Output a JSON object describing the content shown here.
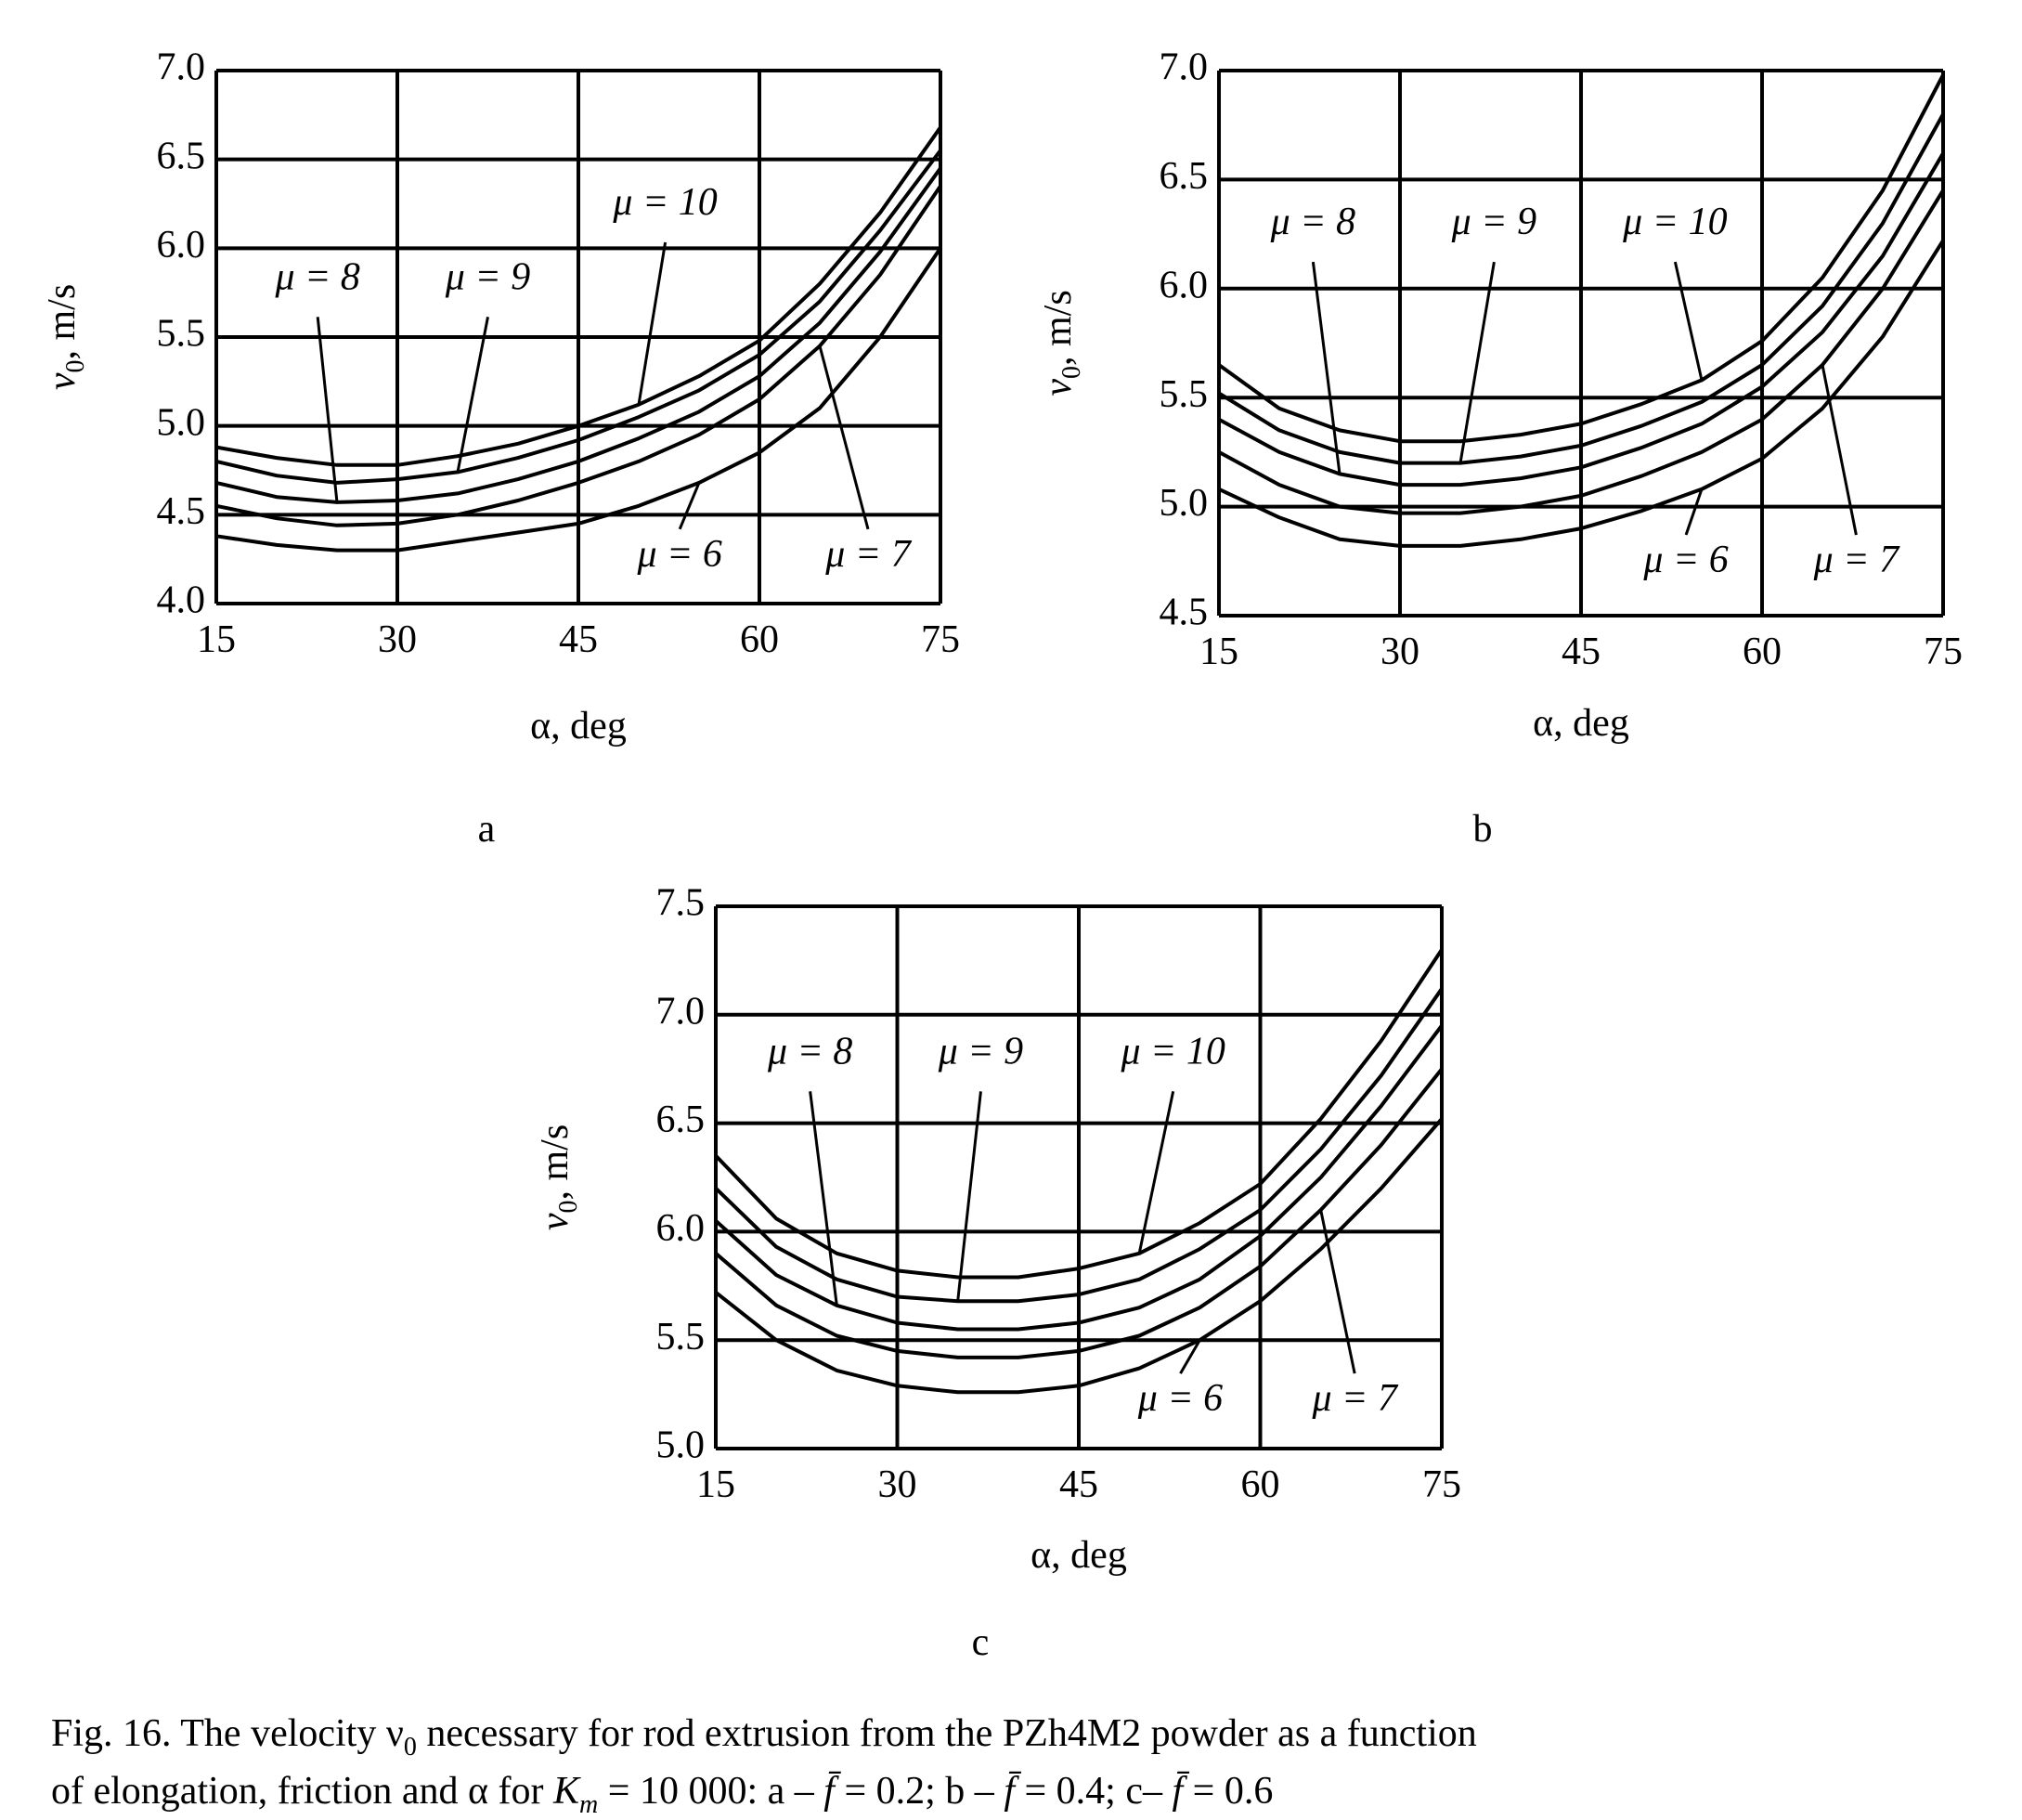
{
  "chart_data": [
    {
      "type": "line",
      "panel": "a",
      "x_label": "α, deg",
      "y_label": [
        "v",
        "0",
        ", m/s"
      ],
      "x": [
        15,
        20,
        25,
        30,
        35,
        40,
        45,
        50,
        55,
        60,
        65,
        70,
        75
      ],
      "xlim": [
        15,
        75
      ],
      "xticks": [
        15,
        30,
        45,
        60,
        75
      ],
      "ylim": [
        4,
        7
      ],
      "yticks": [
        {
          "value": 4,
          "label": "4.0"
        },
        4.5,
        {
          "value": 5,
          "label": "5.0"
        },
        5.5,
        {
          "value": 6,
          "label": "6.0"
        },
        6.5,
        {
          "value": 7,
          "label": "7.0"
        }
      ],
      "grid": true,
      "series": [
        {
          "name": "μ = 6",
          "color": "#000000",
          "values": [
            4.38,
            4.33,
            4.3,
            4.3,
            4.35,
            4.4,
            4.45,
            4.55,
            4.68,
            4.85,
            5.1,
            5.5,
            6.0
          ]
        },
        {
          "name": "μ = 7",
          "color": "#000000",
          "values": [
            4.55,
            4.48,
            4.44,
            4.45,
            4.5,
            4.58,
            4.68,
            4.8,
            4.95,
            5.15,
            5.45,
            5.85,
            6.35
          ]
        },
        {
          "name": "μ = 8",
          "color": "#000000",
          "values": [
            4.68,
            4.6,
            4.57,
            4.58,
            4.62,
            4.7,
            4.8,
            4.93,
            5.08,
            5.28,
            5.58,
            5.98,
            6.45
          ]
        },
        {
          "name": "μ = 9",
          "color": "#000000",
          "values": [
            4.8,
            4.72,
            4.68,
            4.7,
            4.74,
            4.82,
            4.92,
            5.05,
            5.2,
            5.4,
            5.7,
            6.1,
            6.55
          ]
        },
        {
          "name": "μ = 10",
          "color": "#000000",
          "values": [
            4.88,
            4.82,
            4.78,
            4.78,
            4.83,
            4.9,
            5.0,
            5.12,
            5.28,
            5.48,
            5.8,
            6.2,
            6.68
          ]
        }
      ]
    },
    {
      "type": "line",
      "panel": "b",
      "x_label": "α, deg",
      "y_label": [
        "v",
        "0",
        ", m/s"
      ],
      "x": [
        15,
        20,
        25,
        30,
        35,
        40,
        45,
        50,
        55,
        60,
        65,
        70,
        75
      ],
      "xlim": [
        15,
        75
      ],
      "xticks": [
        15,
        30,
        45,
        60,
        75
      ],
      "ylim": [
        4.5,
        7
      ],
      "yticks": [
        4.5,
        {
          "value": 5,
          "label": "5.0"
        },
        5.5,
        {
          "value": 6,
          "label": "6.0"
        },
        6.5,
        {
          "value": 7,
          "label": "7.0"
        }
      ],
      "grid": true,
      "series": [
        {
          "name": "μ = 6",
          "color": "#000000",
          "values": [
            5.08,
            4.95,
            4.85,
            4.82,
            4.82,
            4.85,
            4.9,
            4.98,
            5.08,
            5.22,
            5.45,
            5.78,
            6.22
          ]
        },
        {
          "name": "μ = 7",
          "color": "#000000",
          "values": [
            5.25,
            5.1,
            5.0,
            4.97,
            4.97,
            5.0,
            5.05,
            5.14,
            5.25,
            5.4,
            5.65,
            6.0,
            6.45
          ]
        },
        {
          "name": "μ = 8",
          "color": "#000000",
          "values": [
            5.4,
            5.25,
            5.15,
            5.1,
            5.1,
            5.13,
            5.18,
            5.27,
            5.38,
            5.55,
            5.8,
            6.15,
            6.62
          ]
        },
        {
          "name": "μ = 9",
          "color": "#000000",
          "values": [
            5.52,
            5.35,
            5.25,
            5.2,
            5.2,
            5.23,
            5.28,
            5.37,
            5.48,
            5.65,
            5.92,
            6.3,
            6.8
          ]
        },
        {
          "name": "μ = 10",
          "color": "#000000",
          "values": [
            5.65,
            5.45,
            5.35,
            5.3,
            5.3,
            5.33,
            5.38,
            5.47,
            5.58,
            5.76,
            6.05,
            6.45,
            6.98
          ]
        }
      ]
    },
    {
      "type": "line",
      "panel": "c",
      "x_label": "α, deg",
      "y_label": [
        "v",
        "0",
        ", m/s"
      ],
      "x": [
        15,
        20,
        25,
        30,
        35,
        40,
        45,
        50,
        55,
        60,
        65,
        70,
        75
      ],
      "xlim": [
        15,
        75
      ],
      "xticks": [
        15,
        30,
        45,
        60,
        75
      ],
      "ylim": [
        5,
        7.5
      ],
      "yticks": [
        {
          "value": 5,
          "label": "5.0"
        },
        5.5,
        {
          "value": 6,
          "label": "6.0"
        },
        6.5,
        {
          "value": 7,
          "label": "7.0"
        },
        7.5
      ],
      "grid": true,
      "series": [
        {
          "name": "μ = 6",
          "color": "#000000",
          "values": [
            5.72,
            5.5,
            5.36,
            5.29,
            5.26,
            5.26,
            5.29,
            5.37,
            5.5,
            5.68,
            5.92,
            6.2,
            6.52
          ]
        },
        {
          "name": "μ = 7",
          "color": "#000000",
          "values": [
            5.9,
            5.66,
            5.52,
            5.45,
            5.42,
            5.42,
            5.45,
            5.52,
            5.65,
            5.84,
            6.1,
            6.4,
            6.75
          ]
        },
        {
          "name": "μ = 8",
          "color": "#000000",
          "values": [
            6.05,
            5.8,
            5.66,
            5.58,
            5.55,
            5.55,
            5.58,
            5.65,
            5.78,
            5.98,
            6.25,
            6.58,
            6.95
          ]
        },
        {
          "name": "μ = 9",
          "color": "#000000",
          "values": [
            6.2,
            5.93,
            5.78,
            5.7,
            5.68,
            5.68,
            5.71,
            5.78,
            5.92,
            6.1,
            6.38,
            6.72,
            7.12
          ]
        },
        {
          "name": "μ = 10",
          "color": "#000000",
          "values": [
            6.35,
            6.06,
            5.9,
            5.82,
            5.79,
            5.79,
            5.83,
            5.9,
            6.04,
            6.22,
            6.52,
            6.88,
            7.3
          ]
        }
      ]
    }
  ],
  "caption": [
    "Fig. 16. The velocity ν",
    "0",
    " necessary for rod extrusion from the PZh4M2 powder as a function",
    "of elongation, friction and α for ",
    "K",
    "m",
    " = 10 000: a – ",
    "f̄",
    " = 0.2; b – ",
    "f̄",
    " = 0.4; c– ",
    "f̄",
    " = 0.6"
  ]
}
